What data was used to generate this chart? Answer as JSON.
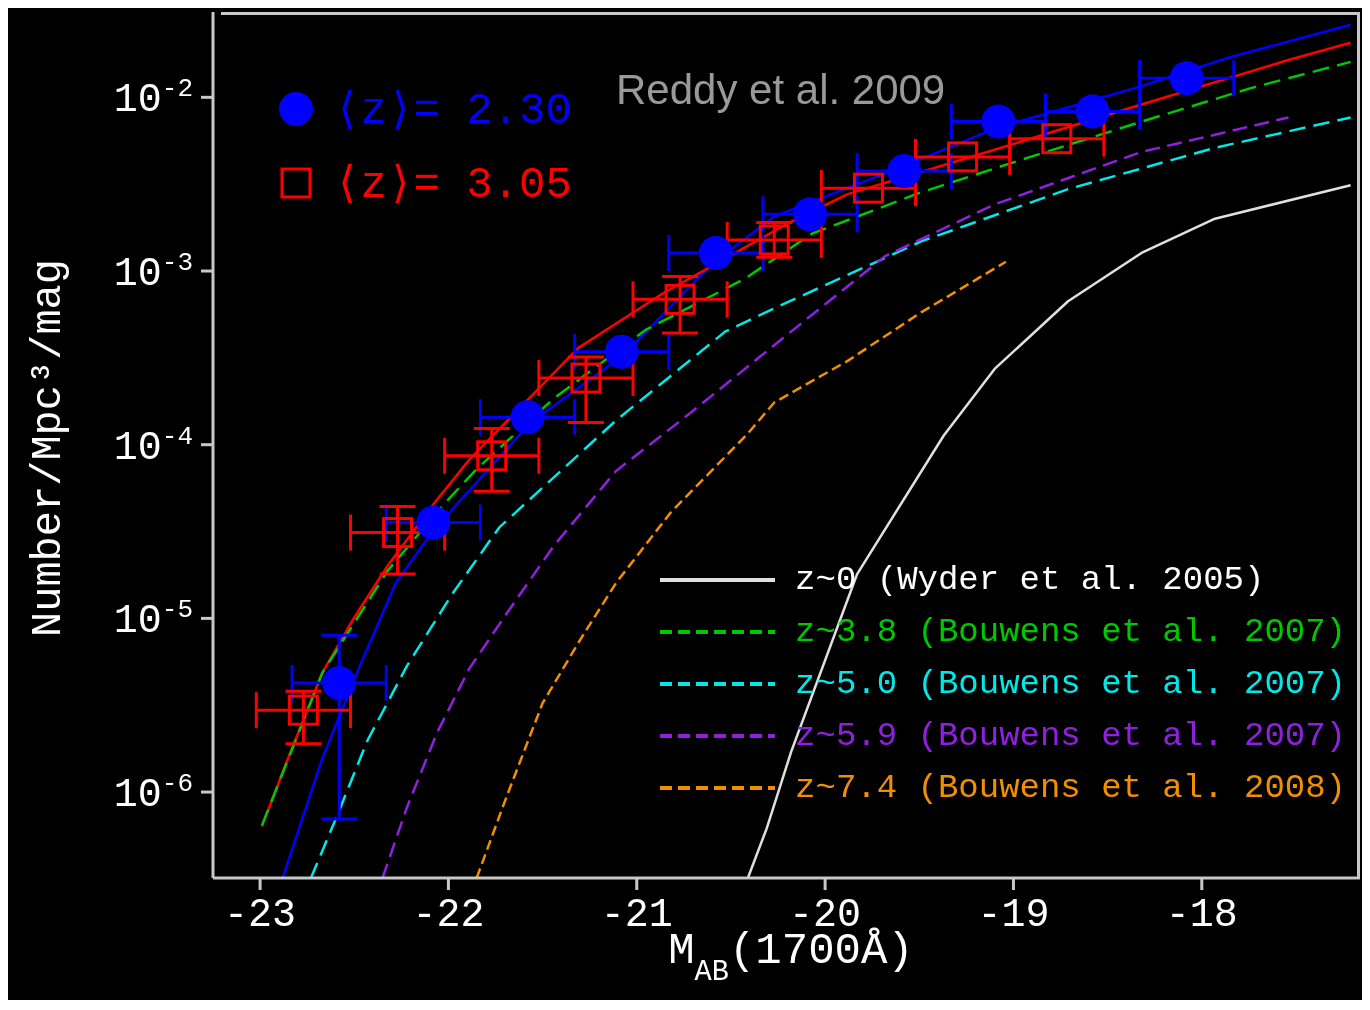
{
  "chart_data": {
    "type": "scatter",
    "xlabel": "M$_{AB}$(1700Å)",
    "ylabel": "Number/Mpc³/mag",
    "annotations": [
      "Reddy et al. 2009"
    ],
    "log": "y",
    "legend": "bottom right",
    "xlim": [
      -23.25,
      -17.16
    ],
    "xticks": [
      -23,
      -22,
      -21,
      -20,
      -19,
      -18
    ],
    "ylim": [
      3.2e-07,
      0.031
    ],
    "yticks": [
      {
        "value": 1e-06,
        "label": "10$^{-6}$"
      },
      {
        "value": 1e-05,
        "label": "10$^{-5}$"
      },
      {
        "value": 0.0001,
        "label": "10$^{-4}$"
      },
      {
        "value": 0.001,
        "label": "10$^{-3}$"
      },
      {
        "value": 0.01,
        "label": "10$^{-2}$"
      }
    ],
    "series": [
      {
        "name": "⟨z⟩= 2.30",
        "marker": "circle",
        "color": "#0000ff",
        "x": [
          -22.58,
          -22.08,
          -21.58,
          -21.08,
          -20.58,
          -20.08,
          -19.58,
          -19.08,
          -18.58,
          -18.08
        ],
        "values": [
          4.25e-06,
          3.56e-05,
          0.000144,
          0.000343,
          0.00127,
          0.00212,
          0.00377,
          0.00725,
          0.0083,
          0.0129
        ],
        "errors": [
          [
            7e-07,
            8e-06
          ],
          null,
          null,
          null,
          null,
          null,
          null,
          null,
          null,
          null
        ],
        "xerrors": [
          0.25,
          0.25,
          0.25,
          0.25,
          0.25,
          0.25,
          0.25,
          0.25,
          0.25,
          0.25
        ]
      },
      {
        "name": "⟨z⟩= 3.05",
        "marker": "square",
        "color": "#ff0000",
        "x": [
          -22.77,
          -22.27,
          -21.77,
          -21.27,
          -20.77,
          -20.27,
          -19.77,
          -19.27,
          -18.77
        ],
        "values": [
          2.96e-06,
          3.12e-05,
          8.63e-05,
          0.000242,
          0.000687,
          0.00151,
          0.003,
          0.00454,
          0.00578
        ],
        "errors": [
          [
            1.9e-06,
            3.8e-06
          ],
          [
            1.8e-05,
            4.4e-05
          ],
          [
            5.4e-05,
            0.000124
          ],
          [
            0.000134,
            0.00032
          ],
          [
            0.00044,
            0.00093
          ],
          [
            0.0012,
            0.0019
          ],
          null,
          null,
          null
        ],
        "xerrors": [
          0.25,
          0.25,
          0.25,
          0.25,
          0.25,
          0.25,
          0.25,
          0.25,
          0.25
        ]
      },
      {
        "name": "z~0 (Wyder et al. 2005)",
        "type": "line",
        "line_style": "solid",
        "color": "#e0e0e0",
        "x": [
          -20.41,
          -20.31,
          -20.18,
          -19.83,
          -19.37,
          -19.1,
          -18.71,
          -18.32,
          -17.93,
          -17.21
        ],
        "values": [
          3.2e-07,
          6.18e-07,
          1.71e-06,
          1.8e-05,
          0.000113,
          0.000273,
          0.00067,
          0.00127,
          0.002,
          0.00312
        ]
      },
      {
        "name": "z~3.8 (Bouwens et al. 2007)",
        "type": "line",
        "line_style": "dashed",
        "color": "#00c800",
        "x": [
          -22.99,
          -22.67,
          -22.32,
          -22.01,
          -21.85,
          -21.44,
          -20.95,
          -20.43,
          -20.07,
          -19.49,
          -18.91,
          -18.32,
          -17.74,
          -17.21
        ],
        "values": [
          6.43e-07,
          4.85e-06,
          1.9e-05,
          4.72e-05,
          7.24e-05,
          0.000185,
          0.00046,
          0.000898,
          0.00164,
          0.00284,
          0.00454,
          0.00725,
          0.0113,
          0.016
        ]
      },
      {
        "name": "z~5.0 (Bouwens et al. 2007)",
        "type": "line",
        "line_style": "dashed",
        "color": "#00e8e8",
        "x": [
          -22.73,
          -22.59,
          -22.43,
          -22.22,
          -21.98,
          -21.73,
          -21.38,
          -21.11,
          -20.53,
          -20.27,
          -19.49,
          -18.71,
          -17.93,
          -17.21
        ],
        "values": [
          3.2e-07,
          7.35e-07,
          1.98e-06,
          5.33e-06,
          1.38e-05,
          3.34e-05,
          7.45e-05,
          0.000138,
          0.000448,
          0.00061,
          0.00148,
          0.00296,
          0.00512,
          0.00766
        ]
      },
      {
        "name": "z~5.9 (Bouwens et al. 2007)",
        "type": "line",
        "line_style": "dashed",
        "color": "#9020e0",
        "x": [
          -22.35,
          -22.22,
          -22.06,
          -21.89,
          -21.69,
          -21.44,
          -21.11,
          -20.72,
          -20.2,
          -19.68,
          -19.1,
          -18.32,
          -17.54
        ],
        "values": [
          3.2e-07,
          8.18e-07,
          2.2e-06,
          5.12e-06,
          1.07e-05,
          2.62e-05,
          7.06e-05,
          0.000151,
          0.000431,
          0.00122,
          0.00242,
          0.00485,
          0.00766
        ]
      },
      {
        "name": "z~7.4 (Bouwens et al. 2008)",
        "type": "line",
        "line_style": "dashed",
        "color": "#f09000",
        "x": [
          -21.85,
          -21.69,
          -21.5,
          -21.31,
          -21.11,
          -20.82,
          -20.41,
          -20.27,
          -19.88,
          -19.49,
          -19.04
        ],
        "values": [
          3.2e-07,
          9.48e-07,
          3.25e-06,
          7.24e-06,
          1.6e-05,
          4.07e-05,
          0.000116,
          0.000175,
          0.000304,
          0.000578,
          0.00113
        ]
      },
      {
        "type": "line",
        "line_style": "solid",
        "color": "#0000ff",
        "x": [
          -22.88,
          -22.67,
          -22.47,
          -22.28,
          -22.08,
          -21.57,
          -21.07,
          -20.6,
          -20.27,
          -19.58,
          -19.1,
          -18.32,
          -17.86,
          -17.21
        ],
        "values": [
          3.2e-07,
          1.56e-06,
          5.33e-06,
          1.6e-05,
          3.21e-05,
          0.000132,
          0.000329,
          0.0011,
          0.00206,
          0.00403,
          0.00661,
          0.0116,
          0.0169,
          0.0262
        ]
      },
      {
        "type": "line",
        "line_style": "solid",
        "color": "#ff0000",
        "x": [
          -22.99,
          -22.86,
          -22.67,
          -22.51,
          -22.32,
          -22.08,
          -21.89,
          -21.31,
          -20.86,
          -20.19,
          -19.88,
          -19.1,
          -18.32,
          -17.54,
          -17.21
        ],
        "values": [
          6.34e-07,
          1.48e-06,
          4.85e-06,
          9.72e-06,
          2.03e-05,
          4.54e-05,
          8.18e-05,
          0.000361,
          0.000745,
          0.0019,
          0.00277,
          0.00499,
          0.0091,
          0.0164,
          0.0206
        ]
      }
    ]
  }
}
